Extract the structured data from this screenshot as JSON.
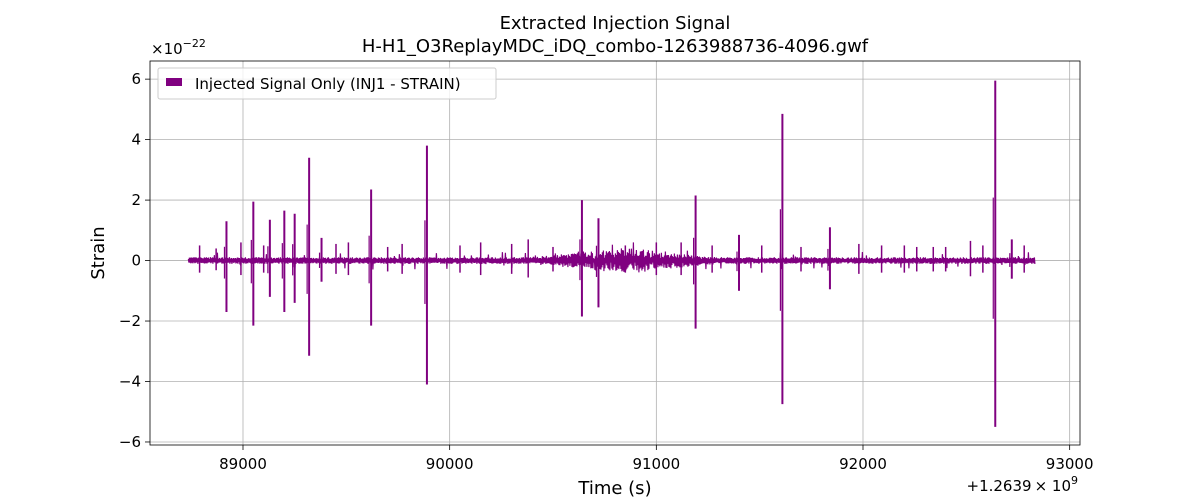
{
  "chart_data": {
    "type": "line",
    "title": "Extracted Injection Signal",
    "subtitle": "H-H1_O3ReplayMDC_iDQ_combo-1263988736-4096.gwf",
    "xlabel": "Time (s)",
    "ylabel": "Strain",
    "x_offset_label_prefix": "+1.2639",
    "x_offset_label_suffix": "× 10",
    "x_offset_label_exp": "9",
    "y_multiplier_label": "×10",
    "y_multiplier_exp": "−22",
    "xlim": [
      88550,
      93050
    ],
    "ylim": [
      -6.1,
      6.6
    ],
    "x_ticks": [
      89000,
      90000,
      91000,
      92000,
      93000
    ],
    "x_tick_labels": [
      "89000",
      "90000",
      "91000",
      "92000",
      "93000"
    ],
    "y_ticks": [
      -6,
      -4,
      -2,
      0,
      2,
      4,
      6
    ],
    "y_tick_labels": [
      "−6",
      "−4",
      "−2",
      "0",
      "2",
      "4",
      "6"
    ],
    "grid": true,
    "legend_position": "top-left",
    "series": [
      {
        "name": "Injected Signal Only (INJ1 - STRAIN)",
        "color": "#800080",
        "x_range": [
          88736,
          92832
        ],
        "baseline_amplitude": 0.1,
        "spikes": [
          {
            "x": 88920,
            "max": 1.3,
            "min": -1.7
          },
          {
            "x": 89050,
            "max": 1.95,
            "min": -2.15
          },
          {
            "x": 89130,
            "max": 1.35,
            "min": -1.2
          },
          {
            "x": 89200,
            "max": 1.65,
            "min": -1.7
          },
          {
            "x": 89250,
            "max": 1.55,
            "min": -1.4
          },
          {
            "x": 89320,
            "max": 3.4,
            "min": -3.15
          },
          {
            "x": 89380,
            "max": 0.75,
            "min": -0.7
          },
          {
            "x": 89620,
            "max": 2.35,
            "min": -2.15
          },
          {
            "x": 89890,
            "max": 3.8,
            "min": -4.1
          },
          {
            "x": 90640,
            "max": 2.0,
            "min": -1.85
          },
          {
            "x": 90720,
            "max": 1.4,
            "min": -1.55
          },
          {
            "x": 91190,
            "max": 2.15,
            "min": -2.25
          },
          {
            "x": 91400,
            "max": 0.85,
            "min": -1.0
          },
          {
            "x": 91610,
            "max": 4.85,
            "min": -4.75
          },
          {
            "x": 91840,
            "max": 1.1,
            "min": -0.95
          },
          {
            "x": 92640,
            "max": 5.95,
            "min": -5.5
          },
          {
            "x": 92720,
            "max": 0.7,
            "min": -0.6
          }
        ],
        "small_bursts": [
          {
            "x": 88790,
            "amp": 0.5
          },
          {
            "x": 88870,
            "amp": 0.4
          },
          {
            "x": 88990,
            "amp": 0.6
          },
          {
            "x": 89100,
            "amp": 0.5
          },
          {
            "x": 89450,
            "amp": 0.55
          },
          {
            "x": 89510,
            "amp": 0.6
          },
          {
            "x": 89700,
            "amp": 0.45
          },
          {
            "x": 89770,
            "amp": 0.55
          },
          {
            "x": 90050,
            "amp": 0.5
          },
          {
            "x": 90150,
            "amp": 0.6
          },
          {
            "x": 90300,
            "amp": 0.55
          },
          {
            "x": 90380,
            "amp": 0.7
          },
          {
            "x": 90500,
            "amp": 0.45
          },
          {
            "x": 90850,
            "amp": 0.5
          },
          {
            "x": 91000,
            "amp": 0.6
          },
          {
            "x": 91120,
            "amp": 0.6
          },
          {
            "x": 91270,
            "amp": 0.5
          },
          {
            "x": 91510,
            "amp": 0.5
          },
          {
            "x": 91700,
            "amp": 0.45
          },
          {
            "x": 91980,
            "amp": 0.55
          },
          {
            "x": 92090,
            "amp": 0.5
          },
          {
            "x": 92200,
            "amp": 0.5
          },
          {
            "x": 92260,
            "amp": 0.45
          },
          {
            "x": 92340,
            "amp": 0.45
          },
          {
            "x": 92400,
            "amp": 0.45
          },
          {
            "x": 92520,
            "amp": 0.65
          },
          {
            "x": 92580,
            "amp": 0.5
          },
          {
            "x": 92780,
            "amp": 0.5
          }
        ],
        "noisy_region": {
          "x_range": [
            90400,
            91300
          ],
          "amp": 0.35
        }
      }
    ]
  }
}
